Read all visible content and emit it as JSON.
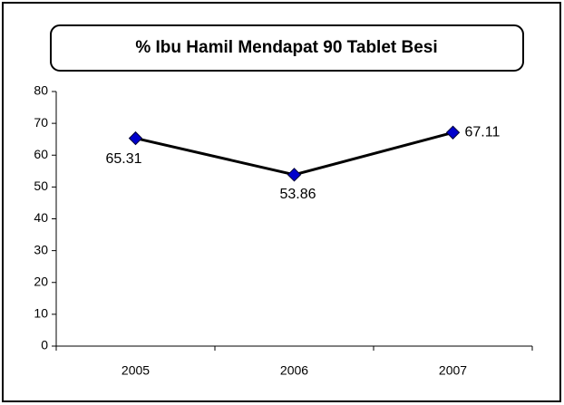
{
  "chart_data": {
    "type": "line",
    "title": "% Ibu Hamil Mendapat 90 Tablet Besi",
    "categories": [
      "2005",
      "2006",
      "2007"
    ],
    "series": [
      {
        "name": null,
        "color": "#0000cc",
        "values": [
          65.31,
          53.86,
          67.11
        ]
      }
    ],
    "ylim": [
      0,
      80
    ],
    "yticks": [
      0,
      10,
      20,
      30,
      40,
      50,
      60,
      70,
      80
    ],
    "grid": false
  }
}
